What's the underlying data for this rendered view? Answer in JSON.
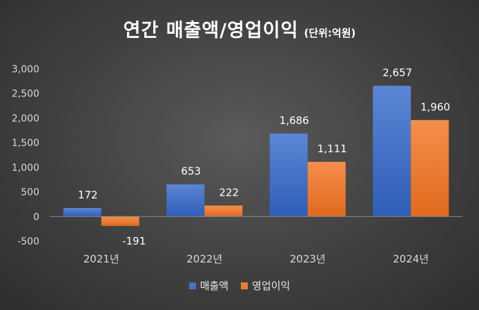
{
  "title": {
    "main": "연간 매출액/영업이익",
    "unit": "(단위:억원)"
  },
  "colors": {
    "revenue": "#4472C4",
    "operating_profit": "#ED7D31",
    "axis_text": "#d9d9d9",
    "label_text": "#ffffff"
  },
  "chart_data": {
    "type": "bar",
    "categories": [
      "2021년",
      "2022년",
      "2023년",
      "2024년"
    ],
    "series": [
      {
        "name": "매출액",
        "values": [
          172,
          653,
          1686,
          2657
        ],
        "labels": [
          "172",
          "653",
          "1,686",
          "2,657"
        ]
      },
      {
        "name": "영업이익",
        "values": [
          -191,
          222,
          1111,
          1960
        ],
        "labels": [
          "-191",
          "222",
          "1,111",
          "1,960"
        ]
      }
    ],
    "ylim": [
      -500,
      3000
    ],
    "yticks": [
      "-500",
      "0",
      "500",
      "1,000",
      "1,500",
      "2,000",
      "2,500",
      "3,000"
    ],
    "ytick_values": [
      -500,
      0,
      500,
      1000,
      1500,
      2000,
      2500,
      3000
    ],
    "grid": false,
    "legend_position": "bottom"
  }
}
